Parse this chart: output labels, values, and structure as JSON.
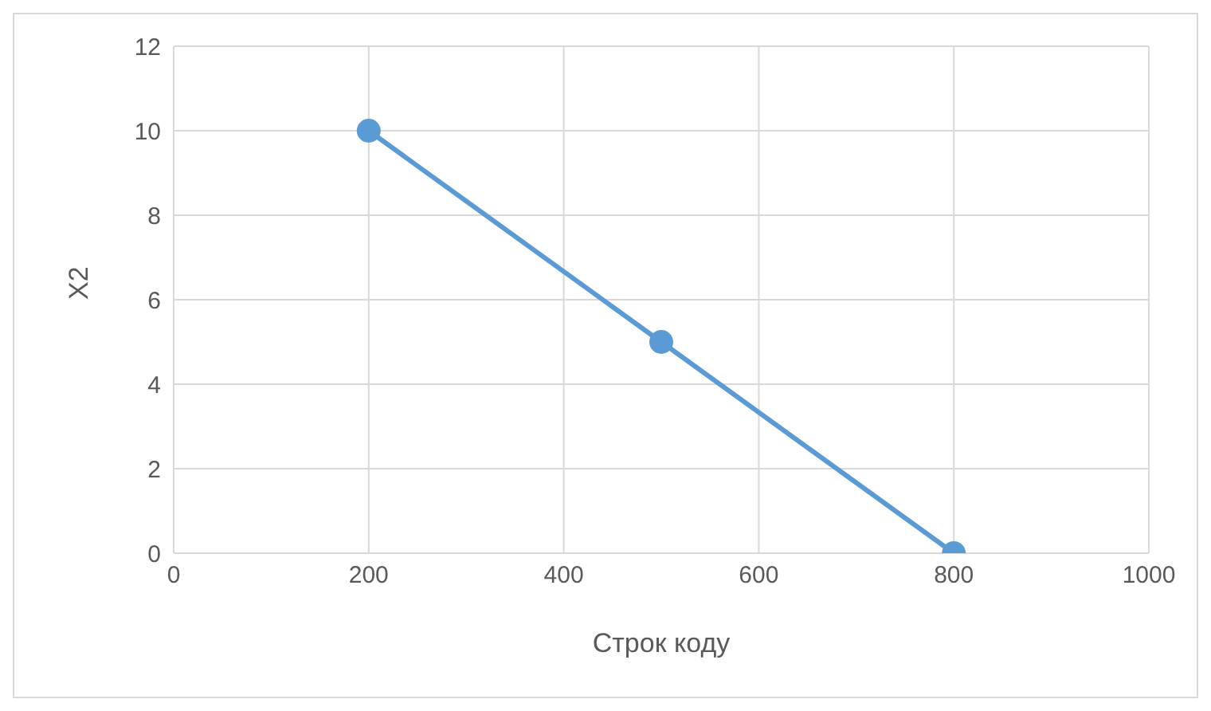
{
  "chart_data": {
    "type": "line",
    "xlabel": "Строк коду",
    "ylabel": "X2",
    "x": [
      200,
      500,
      800
    ],
    "series": [
      {
        "color": "#5b9bd5",
        "values": [
          10,
          5,
          0
        ]
      }
    ],
    "xlim": [
      0,
      1000
    ],
    "xticks": [
      0,
      200,
      400,
      600,
      800,
      1000
    ],
    "ylim": [
      0,
      12
    ],
    "yticks": [
      0,
      2,
      4,
      6,
      8,
      10,
      12
    ],
    "grid": true,
    "legend": false,
    "marker": "circle",
    "line_style": "solid"
  }
}
